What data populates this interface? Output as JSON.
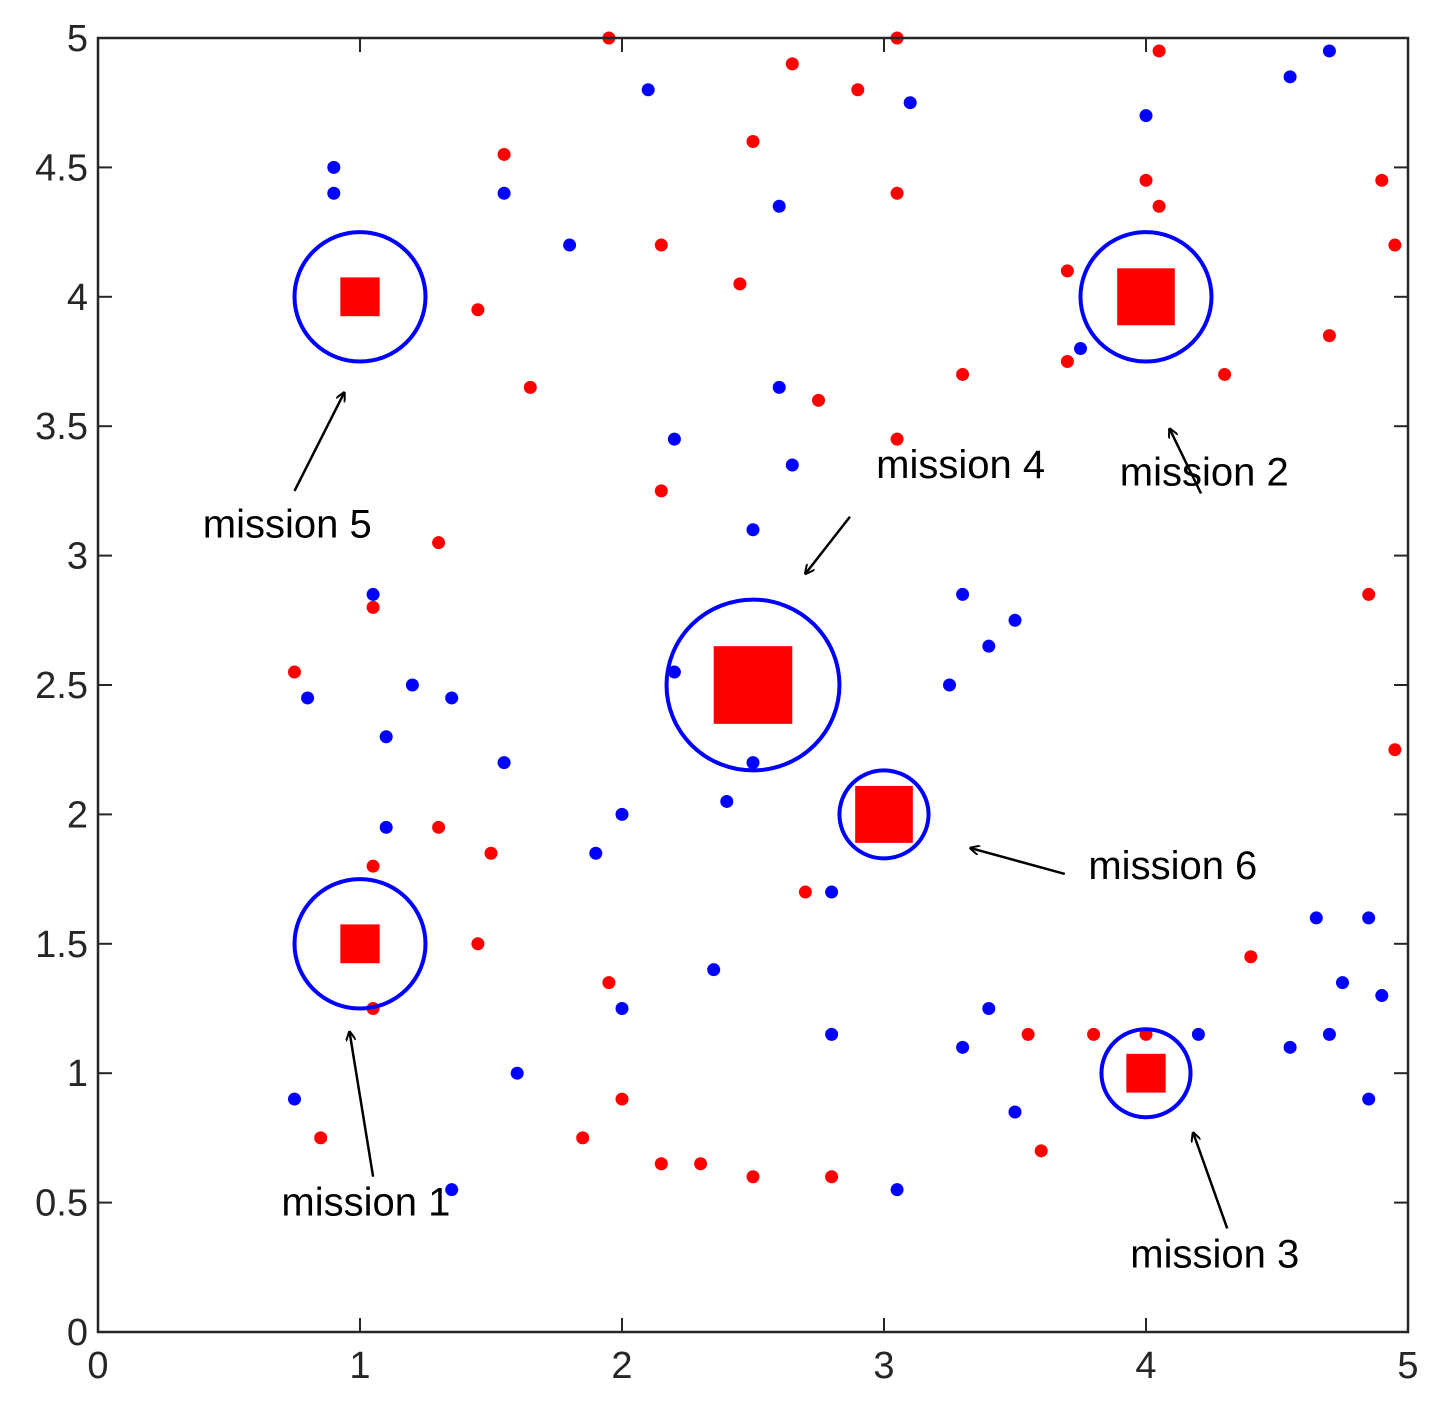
{
  "chart_data": {
    "type": "scatter",
    "title": "",
    "xlabel": "",
    "ylabel": "",
    "xlim": [
      0,
      5
    ],
    "ylim": [
      0,
      5
    ],
    "xticks": [
      "0",
      "1",
      "2",
      "3",
      "4",
      "5"
    ],
    "yticks": [
      "0",
      "0.5",
      "1",
      "1.5",
      "2",
      "2.5",
      "3",
      "3.5",
      "4",
      "4.5",
      "5"
    ],
    "grid": false,
    "colors": {
      "red": "#ff0000",
      "blue": "#0000ff",
      "axis": "#262626",
      "arrow": "#000000"
    },
    "series": [
      {
        "name": "red points",
        "color": "#ff0000",
        "points": [
          [
            1.95,
            5.0
          ],
          [
            3.05,
            5.0
          ],
          [
            4.05,
            4.95
          ],
          [
            2.65,
            4.9
          ],
          [
            2.9,
            4.8
          ],
          [
            1.55,
            4.55
          ],
          [
            2.5,
            4.6
          ],
          [
            4.0,
            4.45
          ],
          [
            3.05,
            4.4
          ],
          [
            4.05,
            4.35
          ],
          [
            4.9,
            4.45
          ],
          [
            2.15,
            4.2
          ],
          [
            4.95,
            4.2
          ],
          [
            3.7,
            4.1
          ],
          [
            2.45,
            4.05
          ],
          [
            1.45,
            3.95
          ],
          [
            4.7,
            3.85
          ],
          [
            3.7,
            3.75
          ],
          [
            3.3,
            3.7
          ],
          [
            4.3,
            3.7
          ],
          [
            1.65,
            3.65
          ],
          [
            2.75,
            3.6
          ],
          [
            3.05,
            3.45
          ],
          [
            2.15,
            3.25
          ],
          [
            1.3,
            3.05
          ],
          [
            4.85,
            2.85
          ],
          [
            1.05,
            2.8
          ],
          [
            0.75,
            2.55
          ],
          [
            4.95,
            2.25
          ],
          [
            1.3,
            1.95
          ],
          [
            1.5,
            1.85
          ],
          [
            1.05,
            1.8
          ],
          [
            2.7,
            1.7
          ],
          [
            1.45,
            1.5
          ],
          [
            4.4,
            1.45
          ],
          [
            1.95,
            1.35
          ],
          [
            1.05,
            1.25
          ],
          [
            3.55,
            1.15
          ],
          [
            3.8,
            1.15
          ],
          [
            4.0,
            1.15
          ],
          [
            2.0,
            0.9
          ],
          [
            0.85,
            0.75
          ],
          [
            1.85,
            0.75
          ],
          [
            3.6,
            0.7
          ],
          [
            2.15,
            0.65
          ],
          [
            2.3,
            0.65
          ],
          [
            2.5,
            0.6
          ],
          [
            2.8,
            0.6
          ]
        ]
      },
      {
        "name": "blue points",
        "color": "#0000ff",
        "points": [
          [
            4.7,
            4.95
          ],
          [
            4.55,
            4.85
          ],
          [
            2.1,
            4.8
          ],
          [
            3.1,
            4.75
          ],
          [
            4.0,
            4.7
          ],
          [
            0.9,
            4.5
          ],
          [
            0.9,
            4.4
          ],
          [
            1.55,
            4.4
          ],
          [
            2.6,
            4.35
          ],
          [
            1.8,
            4.2
          ],
          [
            3.75,
            3.8
          ],
          [
            2.6,
            3.65
          ],
          [
            2.2,
            3.45
          ],
          [
            2.65,
            3.35
          ],
          [
            2.5,
            3.1
          ],
          [
            1.05,
            2.85
          ],
          [
            3.3,
            2.85
          ],
          [
            3.5,
            2.75
          ],
          [
            3.4,
            2.65
          ],
          [
            2.2,
            2.55
          ],
          [
            1.2,
            2.5
          ],
          [
            3.25,
            2.5
          ],
          [
            0.8,
            2.45
          ],
          [
            1.35,
            2.45
          ],
          [
            1.1,
            2.3
          ],
          [
            1.55,
            2.2
          ],
          [
            2.5,
            2.2
          ],
          [
            2.4,
            2.05
          ],
          [
            2.0,
            2.0
          ],
          [
            1.1,
            1.95
          ],
          [
            1.9,
            1.85
          ],
          [
            2.8,
            1.7
          ],
          [
            4.65,
            1.6
          ],
          [
            4.85,
            1.6
          ],
          [
            2.35,
            1.4
          ],
          [
            4.75,
            1.35
          ],
          [
            4.9,
            1.3
          ],
          [
            2.0,
            1.25
          ],
          [
            3.4,
            1.25
          ],
          [
            2.8,
            1.15
          ],
          [
            4.2,
            1.15
          ],
          [
            4.7,
            1.15
          ],
          [
            3.3,
            1.1
          ],
          [
            4.55,
            1.1
          ],
          [
            1.6,
            1.0
          ],
          [
            0.75,
            0.9
          ],
          [
            4.85,
            0.9
          ],
          [
            3.5,
            0.85
          ],
          [
            1.35,
            0.55
          ],
          [
            3.05,
            0.55
          ]
        ]
      }
    ],
    "missions": [
      {
        "name": "mission 1",
        "label": "mission 1",
        "center": [
          1.0,
          1.5
        ],
        "radius": 0.25,
        "square_half": 0.075,
        "arrow_from": [
          1.05,
          0.6
        ],
        "arrow_to": [
          0.96,
          1.16
        ],
        "label_pos": [
          0.7,
          0.45
        ]
      },
      {
        "name": "mission 2",
        "label": "mission 2",
        "center": [
          4.0,
          4.0
        ],
        "radius": 0.25,
        "square_half": 0.11,
        "arrow_from": [
          4.21,
          3.24
        ],
        "arrow_to": [
          4.09,
          3.49
        ],
        "label_pos": [
          3.9,
          3.27
        ]
      },
      {
        "name": "mission 3",
        "label": "mission 3",
        "center": [
          4.0,
          1.0
        ],
        "radius": 0.17,
        "square_half": 0.075,
        "arrow_from": [
          4.31,
          0.4
        ],
        "arrow_to": [
          4.18,
          0.77
        ],
        "label_pos": [
          3.94,
          0.25
        ]
      },
      {
        "name": "mission 4",
        "label": "mission 4",
        "center": [
          2.5,
          2.5
        ],
        "radius": 0.33,
        "square_half": 0.15,
        "arrow_from": [
          2.87,
          3.15
        ],
        "arrow_to": [
          2.7,
          2.93
        ],
        "label_pos": [
          2.97,
          3.3
        ]
      },
      {
        "name": "mission 5",
        "label": "mission 5",
        "center": [
          1.0,
          4.0
        ],
        "radius": 0.25,
        "square_half": 0.075,
        "arrow_from": [
          0.75,
          3.25
        ],
        "arrow_to": [
          0.94,
          3.63
        ],
        "label_pos": [
          0.4,
          3.07
        ]
      },
      {
        "name": "mission 6",
        "label": "mission 6",
        "center": [
          3.0,
          2.0
        ],
        "radius": 0.17,
        "square_half": 0.11,
        "arrow_from": [
          3.69,
          1.77
        ],
        "arrow_to": [
          3.33,
          1.87
        ],
        "label_pos": [
          3.78,
          1.75
        ]
      }
    ]
  }
}
